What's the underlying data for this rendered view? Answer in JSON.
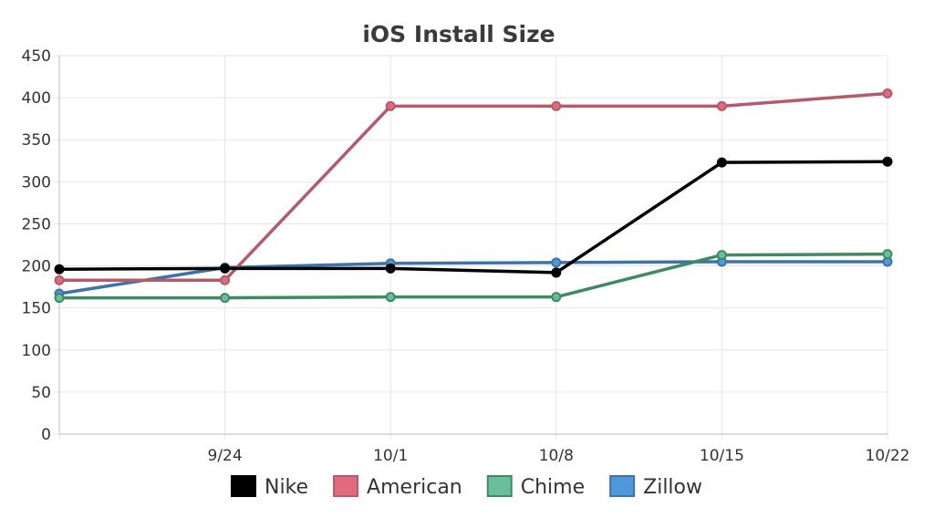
{
  "colors": {
    "background": "#ffffff",
    "grid": "#e6e6e6",
    "axis": "#bbbbbb",
    "text": "#333333",
    "title": "#3a3a3a"
  },
  "chart_data": {
    "type": "line",
    "title": "iOS Install Size",
    "xlabel": "",
    "ylabel": "",
    "x_categories": [
      "",
      "9/24",
      "10/1",
      "10/8",
      "10/15",
      "10/22"
    ],
    "ylim": [
      0,
      450
    ],
    "y_ticks": [
      0,
      50,
      100,
      150,
      200,
      250,
      300,
      350,
      400,
      450
    ],
    "grid": true,
    "legend_position": "bottom-center",
    "series": [
      {
        "name": "Nike",
        "values": [
          196,
          197,
          197,
          192,
          323,
          324
        ],
        "line_color": "#000000",
        "fill_color": "#000000"
      },
      {
        "name": "American",
        "values": [
          183,
          183,
          390,
          390,
          390,
          405
        ],
        "line_color": "#b35a6b",
        "fill_color": "#e36a7e"
      },
      {
        "name": "Chime",
        "values": [
          162,
          162,
          163,
          163,
          213,
          214
        ],
        "line_color": "#3f8a64",
        "fill_color": "#6abf9a"
      },
      {
        "name": "Zillow",
        "values": [
          167,
          198,
          203,
          204,
          205,
          205
        ],
        "line_color": "#3d73a8",
        "fill_color": "#4f97dd"
      }
    ]
  }
}
